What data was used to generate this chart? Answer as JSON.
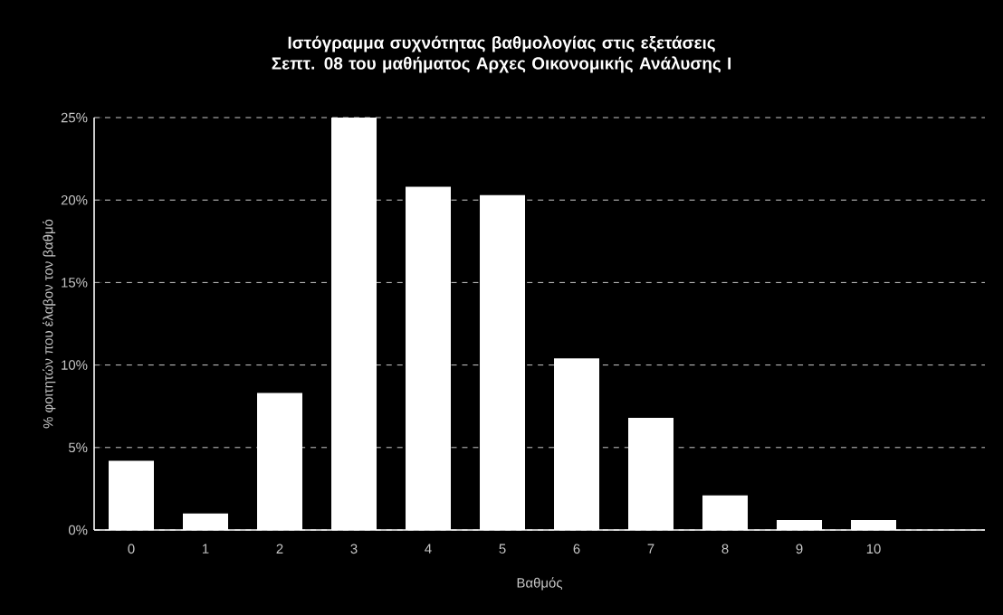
{
  "chart_data": {
    "type": "bar",
    "title": "Ιστόγραμμα συχνότητας βαθμολογίας στις εξετάσεις Σεπτ. 08 του μαθήματος Αρχες Οικονομικής Ανάλυσης Ι",
    "xlabel": "Βαθμός",
    "ylabel": "% φοιτητών που έλαβον τον βαθμό",
    "categories": [
      "0",
      "1",
      "2",
      "3",
      "4",
      "5",
      "6",
      "7",
      "8",
      "9",
      "10",
      null
    ],
    "values": [
      4.2,
      1.0,
      8.3,
      25,
      20.8,
      20.3,
      10.4,
      6.8,
      2.1,
      0.6,
      0.6,
      null
    ],
    "color": "#ffffff",
    "ylim": [
      0,
      25
    ],
    "yticks": [
      {
        "value": 0,
        "label": "0%"
      },
      {
        "value": 5,
        "label": "5%"
      },
      {
        "value": 10,
        "label": "10%"
      },
      {
        "value": 15,
        "label": "15%"
      },
      {
        "value": 20,
        "label": "20%"
      },
      {
        "value": 25,
        "label": "25%"
      }
    ],
    "grid": "y"
  }
}
